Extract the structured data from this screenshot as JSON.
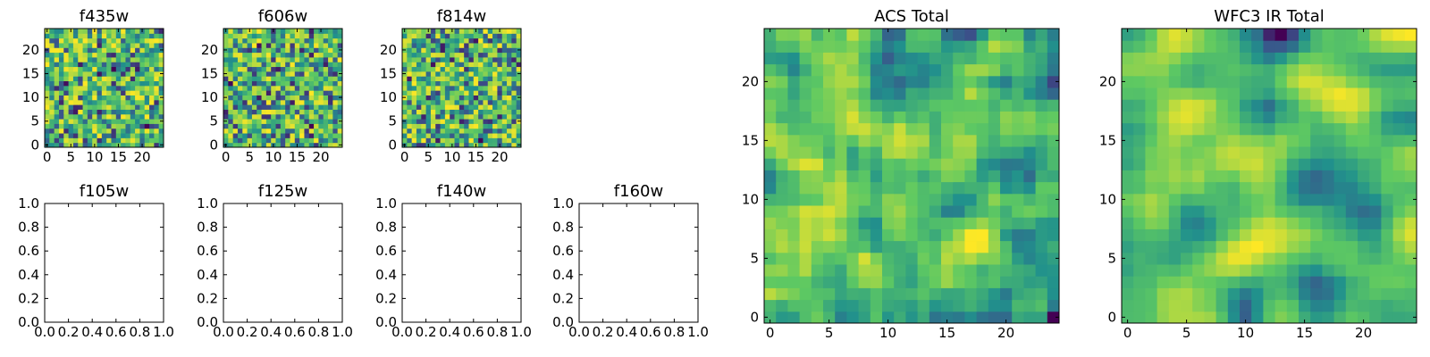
{
  "figure": {
    "background": "#ffffff"
  },
  "colormap": {
    "name": "viridis",
    "stops": [
      "#440154",
      "#3b528b",
      "#21918c",
      "#5ec962",
      "#fde725"
    ]
  },
  "chart_data": [
    {
      "type": "heatmap",
      "title": "f435w",
      "grid_size": 25,
      "xlim": [
        -0.5,
        24.5
      ],
      "ylim": [
        -0.5,
        24.5
      ],
      "xticks": [
        0,
        5,
        10,
        15,
        20
      ],
      "xtick_labels": [
        "0",
        "5",
        "10",
        "15",
        "20"
      ],
      "yticks": [
        0,
        5,
        10,
        15,
        20
      ],
      "ytick_labels": [
        "0",
        "5",
        "10",
        "15",
        "20"
      ],
      "values": "random noise field (approx. 0–1)",
      "seed": 11,
      "smooth": 0
    },
    {
      "type": "heatmap",
      "title": "f606w",
      "grid_size": 25,
      "xlim": [
        -0.5,
        24.5
      ],
      "ylim": [
        -0.5,
        24.5
      ],
      "xticks": [
        0,
        5,
        10,
        15,
        20
      ],
      "xtick_labels": [
        "0",
        "5",
        "10",
        "15",
        "20"
      ],
      "yticks": [
        0,
        5,
        10,
        15,
        20
      ],
      "ytick_labels": [
        "0",
        "5",
        "10",
        "15",
        "20"
      ],
      "values": "random noise field (approx. 0–1)",
      "seed": 23,
      "smooth": 0
    },
    {
      "type": "heatmap",
      "title": "f814w",
      "grid_size": 25,
      "xlim": [
        -0.5,
        24.5
      ],
      "ylim": [
        -0.5,
        24.5
      ],
      "xticks": [
        0,
        5,
        10,
        15,
        20
      ],
      "xtick_labels": [
        "0",
        "5",
        "10",
        "15",
        "20"
      ],
      "yticks": [
        0,
        5,
        10,
        15,
        20
      ],
      "ytick_labels": [
        "0",
        "5",
        "10",
        "15",
        "20"
      ],
      "values": "random noise field (approx. 0–1)",
      "seed": 37,
      "smooth": 0
    },
    {
      "type": "empty",
      "title": "f105w",
      "xlim": [
        0,
        1
      ],
      "ylim": [
        0,
        1
      ],
      "xtick_labels": [
        "0.0",
        "0.2",
        "0.4",
        "0.6",
        "0.8",
        "1.0"
      ],
      "ytick_labels": [
        "0.0",
        "0.2",
        "0.4",
        "0.6",
        "0.8",
        "1.0"
      ]
    },
    {
      "type": "empty",
      "title": "f125w",
      "xlim": [
        0,
        1
      ],
      "ylim": [
        0,
        1
      ],
      "xtick_labels": [
        "0.0",
        "0.2",
        "0.4",
        "0.6",
        "0.8",
        "1.0"
      ],
      "ytick_labels": [
        "0.0",
        "0.2",
        "0.4",
        "0.6",
        "0.8",
        "1.0"
      ]
    },
    {
      "type": "empty",
      "title": "f140w",
      "xlim": [
        0,
        1
      ],
      "ylim": [
        0,
        1
      ],
      "xtick_labels": [
        "0.0",
        "0.2",
        "0.4",
        "0.6",
        "0.8",
        "1.0"
      ],
      "ytick_labels": [
        "0.0",
        "0.2",
        "0.4",
        "0.6",
        "0.8",
        "1.0"
      ]
    },
    {
      "type": "empty",
      "title": "f160w",
      "xlim": [
        0,
        1
      ],
      "ylim": [
        0,
        1
      ],
      "xtick_labels": [
        "0.0",
        "0.2",
        "0.4",
        "0.6",
        "0.8",
        "1.0"
      ],
      "ytick_labels": [
        "0.0",
        "0.2",
        "0.4",
        "0.6",
        "0.8",
        "1.0"
      ]
    },
    {
      "type": "heatmap",
      "title": "ACS Total",
      "grid_size": 25,
      "xlim": [
        -0.5,
        24.5
      ],
      "ylim": [
        -0.5,
        24.5
      ],
      "xticks": [
        0,
        5,
        10,
        15,
        20
      ],
      "xtick_labels": [
        "0",
        "5",
        "10",
        "15",
        "20"
      ],
      "yticks": [
        0,
        5,
        10,
        15,
        20
      ],
      "ytick_labels": [
        "0",
        "5",
        "10",
        "15",
        "20"
      ],
      "values": "sum of f435w + f606w + f814w (noise field)",
      "seed": 53,
      "smooth": 1
    },
    {
      "type": "heatmap",
      "title": "WFC3 IR Total",
      "grid_size": 25,
      "xlim": [
        -0.5,
        24.5
      ],
      "ylim": [
        -0.5,
        24.5
      ],
      "xticks": [
        0,
        5,
        10,
        15,
        20
      ],
      "xtick_labels": [
        "0",
        "5",
        "10",
        "15",
        "20"
      ],
      "yticks": [
        0,
        5,
        10,
        15,
        20
      ],
      "ytick_labels": [
        "0",
        "5",
        "10",
        "15",
        "20"
      ],
      "values": "sum of IR filters (noise field)",
      "seed": 71,
      "smooth": 2
    }
  ]
}
